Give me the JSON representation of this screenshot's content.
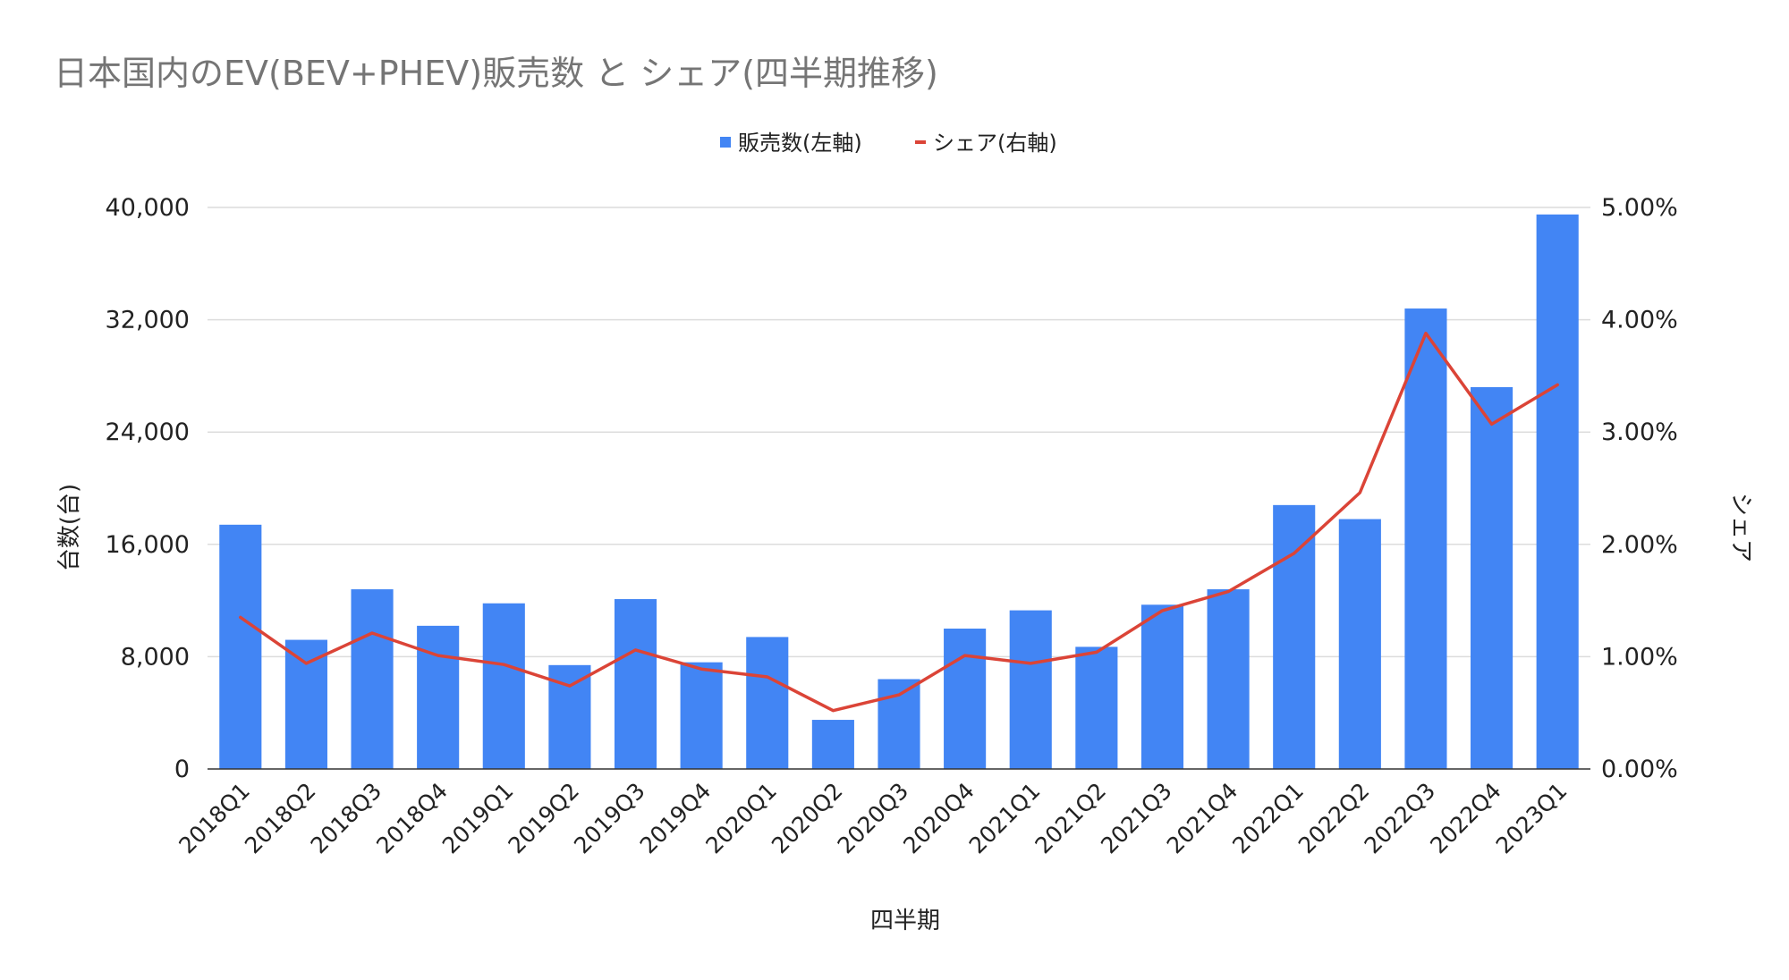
{
  "chart_data": {
    "type": "bar",
    "title": "日本国内のEV(BEV+PHEV)販売数 と シェア(四半期推移)",
    "xlabel": "四半期",
    "ylabel_left": "台数(台)",
    "ylabel_right": "シェア",
    "legend_position": "top",
    "grid": true,
    "categories": [
      "2018Q1",
      "2018Q2",
      "2018Q3",
      "2018Q4",
      "2019Q1",
      "2019Q2",
      "2019Q3",
      "2019Q4",
      "2020Q1",
      "2020Q2",
      "2020Q3",
      "2020Q4",
      "2021Q1",
      "2021Q2",
      "2021Q3",
      "2021Q4",
      "2022Q1",
      "2022Q2",
      "2022Q3",
      "2022Q4",
      "2023Q1"
    ],
    "series": [
      {
        "name": "販売数(左軸)",
        "type": "bar",
        "axis": "left",
        "color": "#4285f4",
        "values": [
          17400,
          9200,
          12800,
          10200,
          11800,
          7400,
          12100,
          7600,
          9400,
          3500,
          6400,
          10000,
          11300,
          8700,
          11700,
          12800,
          18800,
          17800,
          32800,
          27200,
          39500
        ]
      },
      {
        "name": "シェア(右軸)",
        "type": "line",
        "axis": "right",
        "color": "#db4437",
        "values": [
          1.35,
          0.94,
          1.21,
          1.01,
          0.93,
          0.74,
          1.06,
          0.89,
          0.82,
          0.52,
          0.66,
          1.01,
          0.94,
          1.04,
          1.41,
          1.58,
          1.92,
          2.46,
          3.88,
          3.07,
          3.42
        ]
      }
    ],
    "y_left": {
      "ylim": [
        0,
        40000
      ],
      "ticks": [
        0,
        8000,
        16000,
        24000,
        32000,
        40000
      ],
      "tick_labels": [
        "0",
        "8,000",
        "16,000",
        "24,000",
        "32,000",
        "40,000"
      ]
    },
    "y_right": {
      "ylim": [
        0,
        5
      ],
      "ticks": [
        0,
        1,
        2,
        3,
        4,
        5
      ],
      "tick_labels": [
        "0.00%",
        "1.00%",
        "2.00%",
        "3.00%",
        "4.00%",
        "5.00%"
      ]
    }
  }
}
